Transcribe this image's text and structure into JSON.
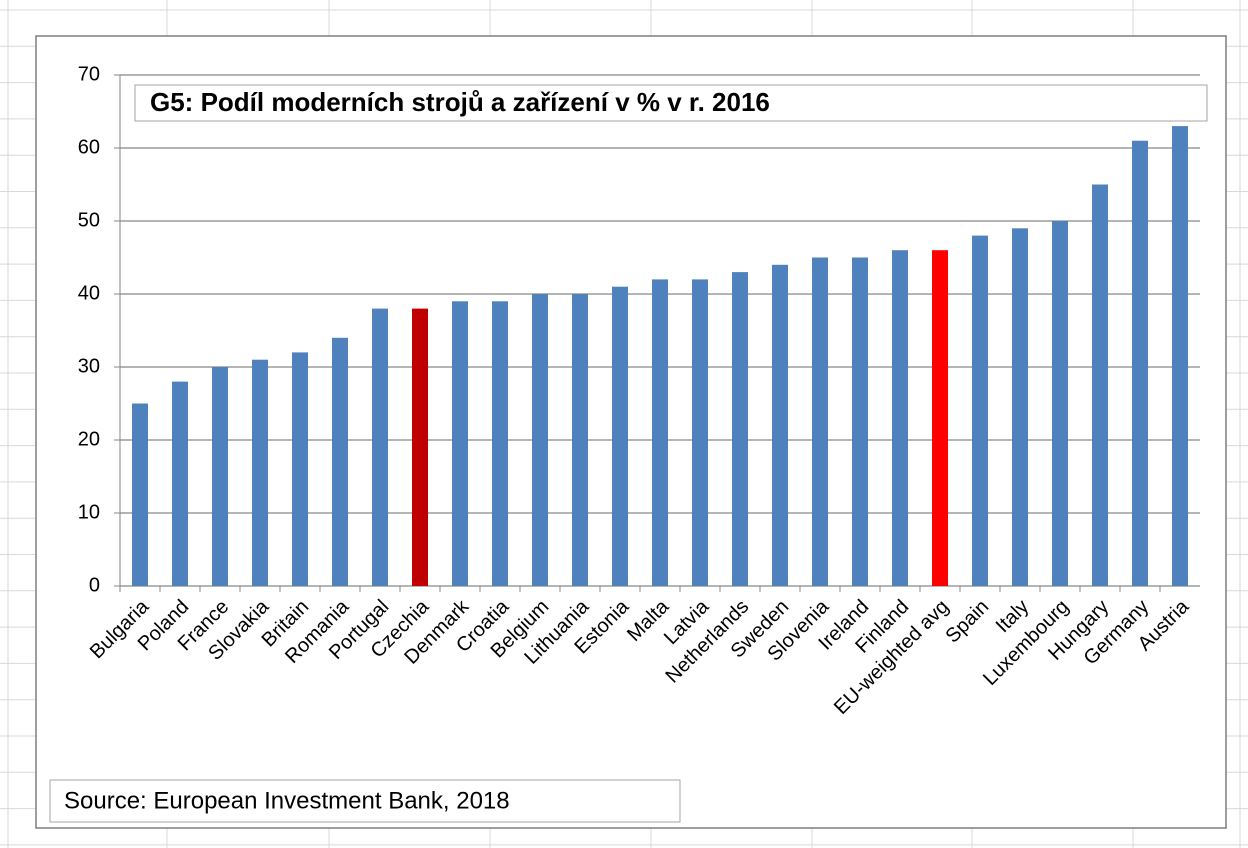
{
  "chart_data": {
    "type": "bar",
    "title": "G5: Podíl moderních strojů a zařízení v % v r. 2016",
    "source": "Source: European Investment Bank, 2018",
    "categories": [
      "Bulgaria",
      "Poland",
      "France",
      "Slovakia",
      "Britain",
      "Romania",
      "Portugal",
      "Czechia",
      "Denmark",
      "Croatia",
      "Belgium",
      "Lithuania",
      "Estonia",
      "Malta",
      "Latvia",
      "Netherlands",
      "Sweden",
      "Slovenia",
      "Ireland",
      "Finland",
      "EU-weighted avg",
      "Spain",
      "Italy",
      "Luxembourg",
      "Hungary",
      "Germany",
      "Austria"
    ],
    "values": [
      25,
      28,
      30,
      31,
      32,
      34,
      38,
      38,
      39,
      39,
      40,
      40,
      41,
      42,
      42,
      43,
      44,
      45,
      45,
      46,
      46,
      48,
      49,
      50,
      55,
      61,
      63
    ],
    "colors": [
      "#4f81bd",
      "#4f81bd",
      "#4f81bd",
      "#4f81bd",
      "#4f81bd",
      "#4f81bd",
      "#4f81bd",
      "#c00000",
      "#4f81bd",
      "#4f81bd",
      "#4f81bd",
      "#4f81bd",
      "#4f81bd",
      "#4f81bd",
      "#4f81bd",
      "#4f81bd",
      "#4f81bd",
      "#4f81bd",
      "#4f81bd",
      "#4f81bd",
      "#ff0000",
      "#4f81bd",
      "#4f81bd",
      "#4f81bd",
      "#4f81bd",
      "#4f81bd",
      "#4f81bd"
    ],
    "ylim": [
      0,
      70
    ],
    "yticks": [
      0,
      10,
      20,
      30,
      40,
      50,
      60,
      70
    ],
    "grid": true
  }
}
